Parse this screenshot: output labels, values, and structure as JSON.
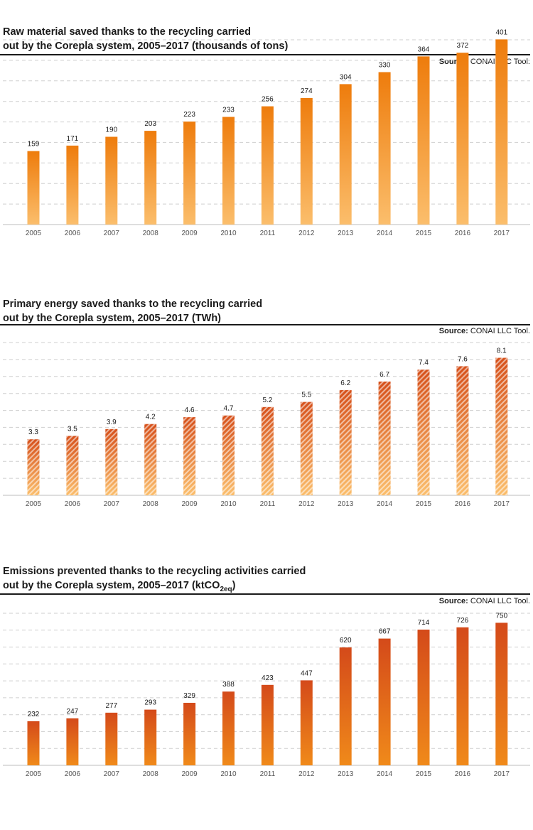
{
  "colors": {
    "chart1_bar_top": "#ee7c0c",
    "chart1_bar_bottom": "#fbbe6c",
    "chart2_bar_top": "#d6501a",
    "chart2_bar_bottom": "#fbbe6c",
    "chart3_bar_top": "#d44a1a",
    "chart3_bar_bottom": "#f08a1a",
    "grid": "#cfcfcf",
    "axis": "#bdbdbd"
  },
  "chart_data": [
    {
      "type": "bar",
      "title_line1": "Raw material saved thanks to the recycling carried",
      "title_line2": "out by the Corepla system, 2005–2017 (thousands of tons)",
      "source_label": "Source:",
      "source_value": "CONAI LLC Tool.",
      "categories": [
        "2005",
        "2006",
        "2007",
        "2008",
        "2009",
        "2010",
        "2011",
        "2012",
        "2013",
        "2014",
        "2015",
        "2016",
        "2017"
      ],
      "values": [
        159,
        171,
        190,
        203,
        223,
        233,
        256,
        274,
        304,
        330,
        364,
        372,
        401
      ],
      "labels": [
        "159",
        "171",
        "190",
        "203",
        "223",
        "233",
        "256",
        "274",
        "304",
        "330",
        "364",
        "372",
        "401"
      ],
      "ylim": [
        0,
        400
      ],
      "grid": true,
      "hatch": false
    },
    {
      "type": "bar",
      "title_line1": "Primary energy saved thanks to the recycling carried",
      "title_line2": "out by the Corepla system, 2005–2017 (TWh)",
      "source_label": "Source:",
      "source_value": "CONAI LLC Tool.",
      "categories": [
        "2005",
        "2006",
        "2007",
        "2008",
        "2009",
        "2010",
        "2011",
        "2012",
        "2013",
        "2014",
        "2015",
        "2016",
        "2017"
      ],
      "values": [
        3.3,
        3.5,
        3.9,
        4.2,
        4.6,
        4.7,
        5.2,
        5.5,
        6.2,
        6.7,
        7.4,
        7.6,
        8.1
      ],
      "labels": [
        "3.3",
        "3.5",
        "3.9",
        "4.2",
        "4.6",
        "4.7",
        "5.2",
        "5.5",
        "6.2",
        "6.7",
        "7.4",
        "7.6",
        "8.1"
      ],
      "ylim": [
        0,
        9
      ],
      "grid": true,
      "hatch": true
    },
    {
      "type": "bar",
      "title_line1": "Emissions prevented thanks to the recycling activities carried",
      "title_line2_prefix": "out by the Corepla system, 2005–2017 (ktCO",
      "title_line2_sub": "2eq",
      "title_line2_suffix": ")",
      "source_label": "Source:",
      "source_value": "CONAI LLC Tool.",
      "categories": [
        "2005",
        "2006",
        "2007",
        "2008",
        "2009",
        "2010",
        "2011",
        "2012",
        "2013",
        "2014",
        "2015",
        "2016",
        "2017"
      ],
      "values": [
        232,
        247,
        277,
        293,
        329,
        388,
        423,
        447,
        620,
        667,
        714,
        726,
        750
      ],
      "labels": [
        "232",
        "247",
        "277",
        "293",
        "329",
        "388",
        "423",
        "447",
        "620",
        "667",
        "714",
        "726",
        "750"
      ],
      "ylim": [
        0,
        800
      ],
      "grid": true,
      "hatch": false
    }
  ]
}
